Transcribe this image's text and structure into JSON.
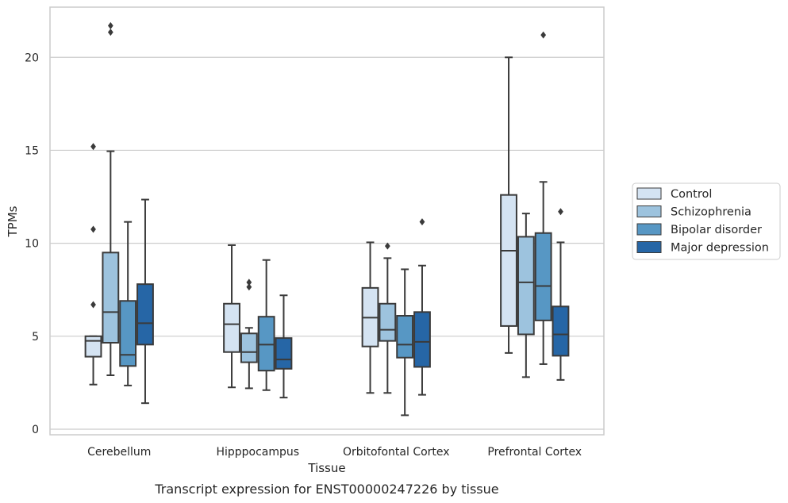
{
  "caption": "Transcript expression for ENST00000247226 by tissue",
  "chart_data": {
    "type": "box",
    "xlabel": "Tissue",
    "ylabel": "TPMs",
    "ylim": [
      -0.3,
      22.7
    ],
    "yticks": [
      0,
      5,
      10,
      15,
      20
    ],
    "grid": true,
    "legend_position": "right",
    "categories": [
      "Cerebellum",
      "Hipppocampus",
      "Orbitofontal Cortex",
      "Prefrontal Cortex"
    ],
    "series": [
      {
        "name": "Control",
        "color": "#d4e3f2",
        "boxes": [
          {
            "whislo": 2.4,
            "q1": 3.9,
            "med": 4.75,
            "q3": 5.0,
            "whishi": 5.0,
            "fliers": [
              6.7,
              10.75,
              15.2
            ]
          },
          {
            "whislo": 2.25,
            "q1": 4.15,
            "med": 5.65,
            "q3": 6.75,
            "whishi": 9.9,
            "fliers": []
          },
          {
            "whislo": 1.95,
            "q1": 4.45,
            "med": 6.0,
            "q3": 7.6,
            "whishi": 10.05,
            "fliers": []
          },
          {
            "whislo": 4.1,
            "q1": 5.55,
            "med": 9.6,
            "q3": 12.6,
            "whishi": 20.0,
            "fliers": []
          }
        ]
      },
      {
        "name": "Schizophrenia",
        "color": "#9dc3de",
        "boxes": [
          {
            "whislo": 2.9,
            "q1": 4.65,
            "med": 6.3,
            "q3": 9.5,
            "whishi": 14.95,
            "fliers": [
              21.35,
              21.7
            ]
          },
          {
            "whislo": 2.2,
            "q1": 3.6,
            "med": 4.15,
            "q3": 5.15,
            "whishi": 5.45,
            "fliers": [
              7.65,
              7.9
            ]
          },
          {
            "whislo": 1.95,
            "q1": 4.75,
            "med": 5.35,
            "q3": 6.75,
            "whishi": 9.2,
            "fliers": [
              9.85
            ]
          },
          {
            "whislo": 2.8,
            "q1": 5.1,
            "med": 7.9,
            "q3": 10.35,
            "whishi": 11.6,
            "fliers": []
          }
        ]
      },
      {
        "name": "Bipolar disorder",
        "color": "#5797c4",
        "boxes": [
          {
            "whislo": 2.35,
            "q1": 3.4,
            "med": 4.0,
            "q3": 6.9,
            "whishi": 11.15,
            "fliers": []
          },
          {
            "whislo": 2.1,
            "q1": 3.15,
            "med": 4.55,
            "q3": 6.05,
            "whishi": 9.1,
            "fliers": []
          },
          {
            "whislo": 0.75,
            "q1": 3.85,
            "med": 4.55,
            "q3": 6.1,
            "whishi": 8.6,
            "fliers": []
          },
          {
            "whislo": 3.5,
            "q1": 5.85,
            "med": 7.7,
            "q3": 10.55,
            "whishi": 13.3,
            "fliers": [
              21.2
            ]
          }
        ]
      },
      {
        "name": "Major depression",
        "color": "#2666a6",
        "boxes": [
          {
            "whislo": 1.4,
            "q1": 4.55,
            "med": 5.7,
            "q3": 7.8,
            "whishi": 12.35,
            "fliers": []
          },
          {
            "whislo": 1.7,
            "q1": 3.25,
            "med": 3.75,
            "q3": 4.9,
            "whishi": 7.2,
            "fliers": []
          },
          {
            "whislo": 1.85,
            "q1": 3.35,
            "med": 4.7,
            "q3": 6.3,
            "whishi": 8.8,
            "fliers": [
              11.15
            ]
          },
          {
            "whislo": 2.65,
            "q1": 3.95,
            "med": 5.1,
            "q3": 6.6,
            "whishi": 10.05,
            "fliers": [
              11.7
            ]
          }
        ]
      }
    ]
  }
}
